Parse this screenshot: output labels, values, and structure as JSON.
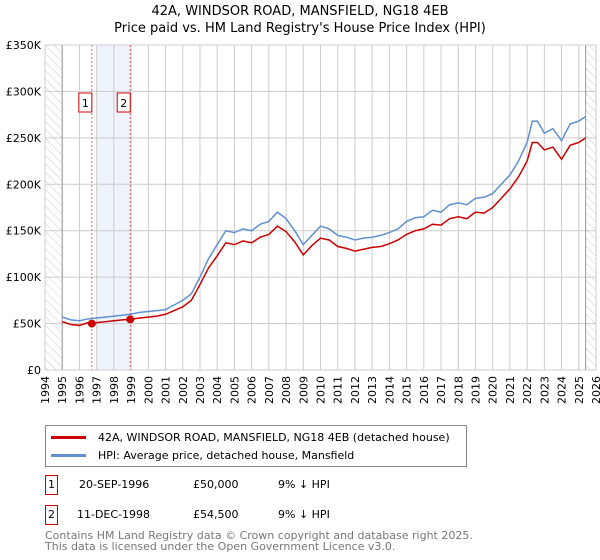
{
  "title": "42A, WINDSOR ROAD, MANSFIELD, NG18 4EB",
  "subtitle": "Price paid vs. HM Land Registry's House Price Index (HPI)",
  "chart_data": {
    "type": "line",
    "title": "42A, WINDSOR ROAD, MANSFIELD, NG18 4EB",
    "subtitle": "Price paid vs. HM Land Registry's House Price Index (HPI)",
    "xlim": [
      1994,
      2026
    ],
    "ylim": [
      0,
      350000
    ],
    "x_ticks": [
      "1994",
      "1995",
      "1996",
      "1997",
      "1998",
      "1999",
      "2000",
      "2001",
      "2002",
      "2003",
      "2004",
      "2005",
      "2006",
      "2007",
      "2008",
      "2009",
      "2010",
      "2011",
      "2012",
      "2013",
      "2014",
      "2015",
      "2016",
      "2017",
      "2018",
      "2019",
      "2020",
      "2021",
      "2022",
      "2023",
      "2024",
      "2025",
      "2026"
    ],
    "y_ticks": [
      {
        "v": 0,
        "label": "£0"
      },
      {
        "v": 50000,
        "label": "£50K"
      },
      {
        "v": 100000,
        "label": "£100K"
      },
      {
        "v": 150000,
        "label": "£150K"
      },
      {
        "v": 200000,
        "label": "£200K"
      },
      {
        "v": 250000,
        "label": "£250K"
      },
      {
        "v": 300000,
        "label": "£300K"
      },
      {
        "v": 350000,
        "label": "£350K"
      }
    ],
    "grid": true,
    "hatched_before": 1995,
    "hatched_after": 2025.4,
    "shaded_band": [
      1997.0,
      1998.95
    ],
    "x": [
      1995,
      1995.5,
      1996,
      1996.5,
      1996.72,
      1997,
      1997.5,
      1998,
      1998.5,
      1998.95,
      1999.5,
      2000,
      2000.5,
      2001,
      2001.5,
      2002,
      2002.5,
      2003,
      2003.5,
      2004,
      2004.5,
      2005,
      2005.5,
      2006,
      2006.5,
      2007,
      2007.5,
      2008,
      2008.5,
      2009,
      2009.5,
      2010,
      2010.5,
      2011,
      2011.5,
      2012,
      2012.5,
      2013,
      2013.5,
      2014,
      2014.5,
      2015,
      2015.5,
      2016,
      2016.5,
      2017,
      2017.5,
      2018,
      2018.5,
      2019,
      2019.5,
      2020,
      2020.5,
      2021,
      2021.5,
      2022,
      2022.3,
      2022.6,
      2023,
      2023.5,
      2024,
      2024.5,
      2025,
      2025.4
    ],
    "series": [
      {
        "name": "42A, WINDSOR ROAD, MANSFIELD, NG18 4EB (detached house)",
        "color": "#cc0000",
        "values": [
          52000,
          49000,
          48000,
          51000,
          50000,
          51000,
          52000,
          53000,
          54000,
          54500,
          56000,
          57000,
          58000,
          60000,
          64000,
          68000,
          75000,
          92000,
          110000,
          123000,
          137000,
          135000,
          139000,
          137000,
          143000,
          146000,
          155000,
          149000,
          138000,
          124000,
          134000,
          142000,
          140000,
          133000,
          131000,
          128000,
          130000,
          132000,
          133000,
          136000,
          140000,
          146000,
          150000,
          152000,
          157000,
          156000,
          163000,
          165000,
          163000,
          170000,
          169000,
          175000,
          185000,
          195000,
          208000,
          225000,
          245000,
          245000,
          237000,
          240000,
          227000,
          242000,
          245000,
          250000
        ]
      },
      {
        "name": "HPI: Average price, detached house, Mansfield",
        "color": "#6090d0",
        "values": [
          57000,
          54000,
          53000,
          55000,
          55500,
          56000,
          57000,
          58000,
          59000,
          60000,
          62000,
          63000,
          64000,
          65000,
          70000,
          75000,
          82000,
          100000,
          120000,
          135000,
          150000,
          148000,
          152000,
          150000,
          157000,
          160000,
          170000,
          163000,
          150000,
          135000,
          145000,
          155000,
          152000,
          145000,
          143000,
          140000,
          142000,
          143000,
          145000,
          148000,
          152000,
          160000,
          164000,
          165000,
          172000,
          170000,
          178000,
          180000,
          178000,
          185000,
          186000,
          190000,
          200000,
          210000,
          225000,
          245000,
          268000,
          268000,
          255000,
          260000,
          247000,
          265000,
          268000,
          273000
        ]
      }
    ],
    "sales": [
      {
        "n": "1",
        "x": 1996.72,
        "price": 50000
      },
      {
        "n": "2",
        "x": 1998.95,
        "price": 54500
      }
    ]
  },
  "legend": {
    "property": "42A, WINDSOR ROAD, MANSFIELD, NG18 4EB (detached house)",
    "hpi": "HPI: Average price, detached house, Mansfield"
  },
  "sales_table": [
    {
      "n": "1",
      "date": "20-SEP-1996",
      "price": "£50,000",
      "hpi": "9% ↓ HPI"
    },
    {
      "n": "2",
      "date": "11-DEC-1998",
      "price": "£54,500",
      "hpi": "9% ↓ HPI"
    }
  ],
  "footer": [
    "Contains HM Land Registry data © Crown copyright and database right 2025.",
    "This data is licensed under the Open Government Licence v3.0."
  ]
}
